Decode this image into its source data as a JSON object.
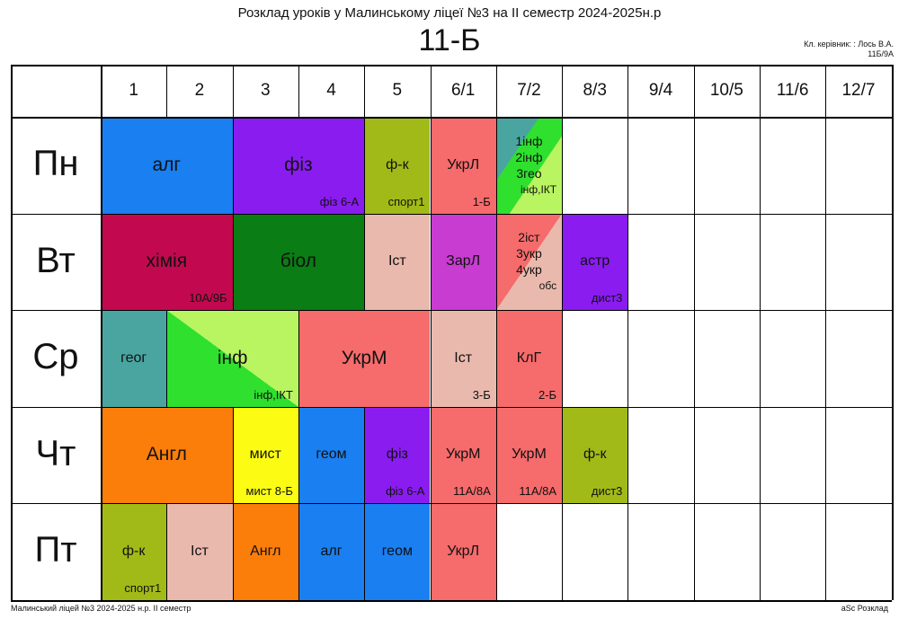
{
  "header": {
    "title": "Розклад уроків у Малинському ліцеї №3 на ІІ семестр 2024-2025н.р",
    "class_name": "11-Б",
    "teacher_line1": "Кл. керівник: : Лось В.А.",
    "teacher_line2": "11Б/9А"
  },
  "periods": [
    "1",
    "2",
    "3",
    "4",
    "5",
    "6/1",
    "7/2",
    "8/3",
    "9/4",
    "10/5",
    "11/6",
    "12/7"
  ],
  "days": [
    "Пн",
    "Вт",
    "Ср",
    "Чт",
    "Пт"
  ],
  "lessons": [
    {
      "day": 0,
      "start": 0,
      "span": 2,
      "subject": "алг",
      "room": "",
      "color": "#1a7ff0"
    },
    {
      "day": 0,
      "start": 2,
      "span": 2,
      "subject": "фіз",
      "room": "фіз 6-А",
      "color": "#8a1cf0"
    },
    {
      "day": 0,
      "start": 4,
      "span": 1,
      "subject": "ф-к",
      "room": "спорт1",
      "color": "#a2ba18"
    },
    {
      "day": 0,
      "start": 5,
      "span": 1,
      "subject": "УкрЛ",
      "room": "1-Б",
      "color": "#f66b6b"
    },
    {
      "day": 0,
      "start": 6,
      "span": 1,
      "multi": [
        "1інф",
        "2інф",
        "3гео"
      ],
      "room": "інф,ІКТ",
      "color": "#4aa5a0",
      "color2": "#2fe02f",
      "color3": "#b8f560"
    },
    {
      "day": 1,
      "start": 0,
      "span": 2,
      "subject": "хімія",
      "room": "10А/9Б",
      "color": "#c2094f"
    },
    {
      "day": 1,
      "start": 2,
      "span": 2,
      "subject": "біол",
      "room": "",
      "color": "#0a7d14"
    },
    {
      "day": 1,
      "start": 4,
      "span": 1,
      "subject": "Іст",
      "room": "",
      "color": "#eab9ad"
    },
    {
      "day": 1,
      "start": 5,
      "span": 1,
      "subject": "ЗарЛ",
      "room": "",
      "color": "#c83cd2"
    },
    {
      "day": 1,
      "start": 6,
      "span": 1,
      "multi": [
        "2іст",
        "3укр",
        "4укр"
      ],
      "room": "обс",
      "color": "#f66b6b",
      "color2": "#f66b6b",
      "color3": "#eab9ad"
    },
    {
      "day": 1,
      "start": 7,
      "span": 1,
      "subject": "астр",
      "room": "дист3",
      "color": "#8a1cf0"
    },
    {
      "day": 2,
      "start": 0,
      "span": 1,
      "subject": "геог",
      "room": "",
      "color": "#4aa5a0"
    },
    {
      "day": 2,
      "start": 1,
      "span": 2,
      "subject": "інф",
      "room": "інф,ІКТ",
      "color": "#2fe02f",
      "color2": "#b8f560"
    },
    {
      "day": 2,
      "start": 3,
      "span": 2,
      "subject": "УкрМ",
      "room": "",
      "color": "#f66b6b"
    },
    {
      "day": 2,
      "start": 5,
      "span": 1,
      "subject": "Іст",
      "room": "3-Б",
      "color": "#eab9ad"
    },
    {
      "day": 2,
      "start": 6,
      "span": 1,
      "subject": "КлГ",
      "room": "2-Б",
      "color": "#f66b6b"
    },
    {
      "day": 3,
      "start": 0,
      "span": 2,
      "subject": "Англ",
      "room": "",
      "color": "#fb7d0a"
    },
    {
      "day": 3,
      "start": 2,
      "span": 1,
      "subject": "мист",
      "room": "мист 8-Б",
      "color": "#fbfb13"
    },
    {
      "day": 3,
      "start": 3,
      "span": 1,
      "subject": "геом",
      "room": "",
      "color": "#1a7ff0"
    },
    {
      "day": 3,
      "start": 4,
      "span": 1,
      "subject": "фіз",
      "room": "фіз 6-А",
      "color": "#8a1cf0"
    },
    {
      "day": 3,
      "start": 5,
      "span": 1,
      "subject": "УкрМ",
      "room": "11А/8А",
      "color": "#f66b6b"
    },
    {
      "day": 3,
      "start": 6,
      "span": 1,
      "subject": "УкрМ",
      "room": "11А/8А",
      "color": "#f66b6b"
    },
    {
      "day": 3,
      "start": 7,
      "span": 1,
      "subject": "ф-к",
      "room": "дист3",
      "color": "#a2ba18"
    },
    {
      "day": 4,
      "start": 0,
      "span": 1,
      "subject": "ф-к",
      "room": "спорт1",
      "color": "#a2ba18"
    },
    {
      "day": 4,
      "start": 1,
      "span": 1,
      "subject": "Іст",
      "room": "",
      "color": "#eab9ad"
    },
    {
      "day": 4,
      "start": 2,
      "span": 1,
      "subject": "Англ",
      "room": "",
      "color": "#fb7d0a"
    },
    {
      "day": 4,
      "start": 3,
      "span": 1,
      "subject": "алг",
      "room": "",
      "color": "#1a7ff0"
    },
    {
      "day": 4,
      "start": 4,
      "span": 1,
      "subject": "геом",
      "room": "",
      "color": "#1a7ff0"
    },
    {
      "day": 4,
      "start": 5,
      "span": 1,
      "subject": "УкрЛ",
      "room": "",
      "color": "#f66b6b"
    }
  ],
  "footer": {
    "left": "Малинський ліцей №3  2024-2025 н.р. ІІ семестр",
    "right": "aSc Розклад"
  }
}
